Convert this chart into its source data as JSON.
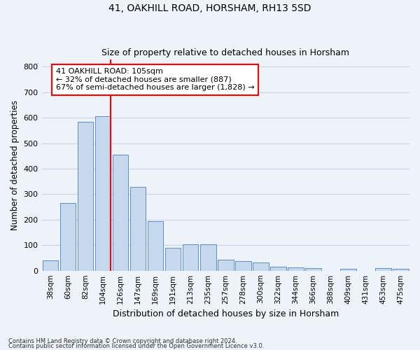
{
  "title1": "41, OAKHILL ROAD, HORSHAM, RH13 5SD",
  "title2": "Size of property relative to detached houses in Horsham",
  "xlabel": "Distribution of detached houses by size in Horsham",
  "ylabel": "Number of detached properties",
  "footnote1": "Contains HM Land Registry data © Crown copyright and database right 2024.",
  "footnote2": "Contains public sector information licensed under the Open Government Licence v3.0.",
  "categories": [
    "38sqm",
    "60sqm",
    "82sqm",
    "104sqm",
    "126sqm",
    "147sqm",
    "169sqm",
    "191sqm",
    "213sqm",
    "235sqm",
    "257sqm",
    "278sqm",
    "300sqm",
    "322sqm",
    "344sqm",
    "366sqm",
    "388sqm",
    "409sqm",
    "431sqm",
    "453sqm",
    "475sqm"
  ],
  "values": [
    40,
    265,
    585,
    605,
    455,
    330,
    195,
    90,
    103,
    103,
    42,
    38,
    32,
    15,
    14,
    10,
    0,
    7,
    0,
    10,
    7
  ],
  "bar_color": "#c5d8ed",
  "bar_edge_color": "#5b8fc9",
  "grid_color": "#c8d4e8",
  "annotation_text": "41 OAKHILL ROAD: 105sqm\n← 32% of detached houses are smaller (887)\n67% of semi-detached houses are larger (1,828) →",
  "annotation_box_color": "white",
  "annotation_box_edge": "red",
  "vline_color": "red",
  "ylim": [
    0,
    830
  ],
  "yticks": [
    0,
    100,
    200,
    300,
    400,
    500,
    600,
    700,
    800
  ],
  "background_color": "#eef2f9"
}
